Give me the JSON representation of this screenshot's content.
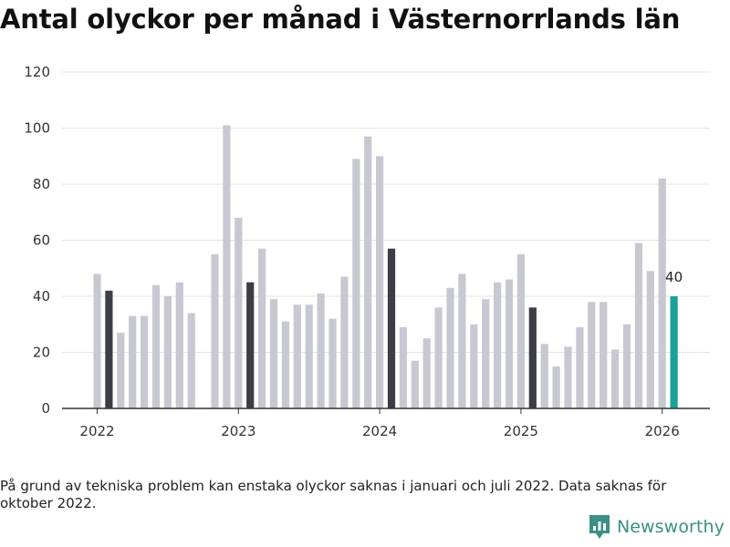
{
  "chart_data": {
    "type": "bar",
    "title": "Antal olyckor per månad i Västernorrlands län",
    "xlabel": "",
    "ylabel": "",
    "ylim": [
      0,
      120
    ],
    "yticks": [
      0,
      20,
      40,
      60,
      80,
      100,
      120
    ],
    "ytick_labels": [
      "0",
      "20",
      "40",
      "60",
      "80",
      "100",
      "120"
    ],
    "xtick_labels": [
      "2022",
      "2023",
      "2024",
      "2025",
      "2026"
    ],
    "months": [
      {
        "date": "2022-01",
        "value": 48,
        "category": "regular"
      },
      {
        "date": "2022-02",
        "value": 42,
        "category": "highlight"
      },
      {
        "date": "2022-03",
        "value": 27,
        "category": "regular"
      },
      {
        "date": "2022-04",
        "value": 33,
        "category": "regular"
      },
      {
        "date": "2022-05",
        "value": 33,
        "category": "regular"
      },
      {
        "date": "2022-06",
        "value": 44,
        "category": "regular"
      },
      {
        "date": "2022-07",
        "value": 40,
        "category": "regular"
      },
      {
        "date": "2022-08",
        "value": 45,
        "category": "regular"
      },
      {
        "date": "2022-09",
        "value": 34,
        "category": "regular"
      },
      {
        "date": "2022-10",
        "value": null,
        "category": "regular"
      },
      {
        "date": "2022-11",
        "value": 55,
        "category": "regular"
      },
      {
        "date": "2022-12",
        "value": 101,
        "category": "regular"
      },
      {
        "date": "2023-01",
        "value": 68,
        "category": "regular"
      },
      {
        "date": "2023-02",
        "value": 45,
        "category": "highlight"
      },
      {
        "date": "2023-03",
        "value": 57,
        "category": "regular"
      },
      {
        "date": "2023-04",
        "value": 39,
        "category": "regular"
      },
      {
        "date": "2023-05",
        "value": 31,
        "category": "regular"
      },
      {
        "date": "2023-06",
        "value": 37,
        "category": "regular"
      },
      {
        "date": "2023-07",
        "value": 37,
        "category": "regular"
      },
      {
        "date": "2023-08",
        "value": 41,
        "category": "regular"
      },
      {
        "date": "2023-09",
        "value": 32,
        "category": "regular"
      },
      {
        "date": "2023-10",
        "value": 47,
        "category": "regular"
      },
      {
        "date": "2023-11",
        "value": 89,
        "category": "regular"
      },
      {
        "date": "2023-12",
        "value": 97,
        "category": "regular"
      },
      {
        "date": "2024-01",
        "value": 90,
        "category": "regular"
      },
      {
        "date": "2024-02",
        "value": 57,
        "category": "highlight"
      },
      {
        "date": "2024-03",
        "value": 29,
        "category": "regular"
      },
      {
        "date": "2024-04",
        "value": 17,
        "category": "regular"
      },
      {
        "date": "2024-05",
        "value": 25,
        "category": "regular"
      },
      {
        "date": "2024-06",
        "value": 36,
        "category": "regular"
      },
      {
        "date": "2024-07",
        "value": 43,
        "category": "regular"
      },
      {
        "date": "2024-08",
        "value": 48,
        "category": "regular"
      },
      {
        "date": "2024-09",
        "value": 30,
        "category": "regular"
      },
      {
        "date": "2024-10",
        "value": 39,
        "category": "regular"
      },
      {
        "date": "2024-11",
        "value": 45,
        "category": "regular"
      },
      {
        "date": "2024-12",
        "value": 46,
        "category": "regular"
      },
      {
        "date": "2025-01",
        "value": 55,
        "category": "regular"
      },
      {
        "date": "2025-02",
        "value": 36,
        "category": "highlight"
      },
      {
        "date": "2025-03",
        "value": 23,
        "category": "regular"
      },
      {
        "date": "2025-04",
        "value": 15,
        "category": "regular"
      },
      {
        "date": "2025-05",
        "value": 22,
        "category": "regular"
      },
      {
        "date": "2025-06",
        "value": 29,
        "category": "regular"
      },
      {
        "date": "2025-07",
        "value": 38,
        "category": "regular"
      },
      {
        "date": "2025-08",
        "value": 38,
        "category": "regular"
      },
      {
        "date": "2025-09",
        "value": 21,
        "category": "regular"
      },
      {
        "date": "2025-10",
        "value": 30,
        "category": "regular"
      },
      {
        "date": "2025-11",
        "value": 59,
        "category": "regular"
      },
      {
        "date": "2025-12",
        "value": 49,
        "category": "regular"
      },
      {
        "date": "2026-01",
        "value": 82,
        "category": "regular"
      },
      {
        "date": "2026-02",
        "value": 40,
        "category": "current",
        "label": "40"
      }
    ],
    "colors": {
      "regular": "#c8c8d2",
      "highlight": "#3d3d48",
      "current": "#1aa198",
      "grid": "#e3e3e3",
      "axis": "#333333"
    },
    "grid": true
  },
  "footnote": "På grund av tekniska problem kan enstaka olyckor saknas i januari och juli 2022. Data saknas för oktober 2022.",
  "brand": {
    "name": "Newsworthy",
    "icon": "newsworthy-logo-icon",
    "color": "#3a8f87"
  }
}
